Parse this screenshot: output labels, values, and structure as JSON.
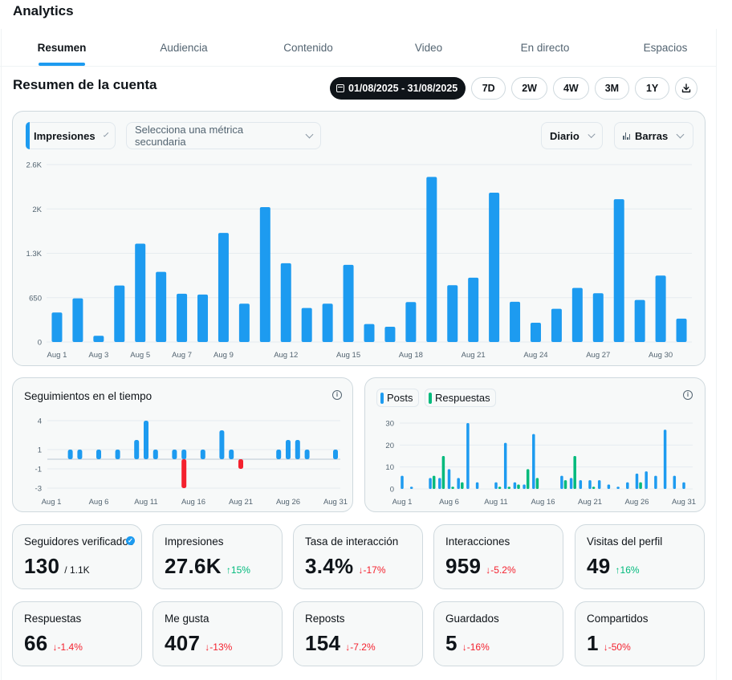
{
  "app": {
    "title": "Analytics"
  },
  "tabs": [
    {
      "label": "Resumen",
      "active": true
    },
    {
      "label": "Audiencia",
      "active": false
    },
    {
      "label": "Contenido",
      "active": false
    },
    {
      "label": "Video",
      "active": false
    },
    {
      "label": "En directo",
      "active": false
    },
    {
      "label": "Espacios",
      "active": false
    }
  ],
  "section_title": "Resumen de la cuenta",
  "range": {
    "date_label": "01/08/2025 - 31/08/2025",
    "presets": [
      "7D",
      "2W",
      "4W",
      "3M",
      "1Y"
    ],
    "download_icon": "download-icon"
  },
  "main_chart": {
    "primary_metric": "Impresiones",
    "secondary_metric_placeholder": "Selecciona una métrica secundaria",
    "granularity": "Diario",
    "chart_type": "Barras"
  },
  "followers_card": {
    "title": "Seguimientos en el tiempo"
  },
  "posts_card": {
    "legend": [
      "Posts",
      "Respuestas"
    ]
  },
  "colors": {
    "accent": "#1d9bf0",
    "green": "#00ba7c",
    "red": "#f4212e"
  },
  "stats": [
    {
      "label": "Seguidores verificados",
      "value": "130",
      "total": "/ 1.1K",
      "verified": true
    },
    {
      "label": "Impresiones",
      "value": "27.6K",
      "delta": "15%",
      "dir": "up"
    },
    {
      "label": "Tasa de interacción",
      "value": "3.4%",
      "delta": "-17%",
      "dir": "down"
    },
    {
      "label": "Interacciones",
      "value": "959",
      "delta": "-5.2%",
      "dir": "down"
    },
    {
      "label": "Visitas del perfil",
      "value": "49",
      "delta": "16%",
      "dir": "up"
    },
    {
      "label": "Respuestas",
      "value": "66",
      "delta": "-1.4%",
      "dir": "down"
    },
    {
      "label": "Me gusta",
      "value": "407",
      "delta": "-13%",
      "dir": "down"
    },
    {
      "label": "Reposts",
      "value": "154",
      "delta": "-7.2%",
      "dir": "down"
    },
    {
      "label": "Guardados",
      "value": "5",
      "delta": "-16%",
      "dir": "down"
    },
    {
      "label": "Compartidos",
      "value": "1",
      "delta": "-50%",
      "dir": "down"
    }
  ],
  "chart_data": [
    {
      "id": "impressions",
      "type": "bar",
      "title": "Impresiones",
      "x": [
        "Aug 1",
        "Aug 2",
        "Aug 3",
        "Aug 4",
        "Aug 5",
        "Aug 6",
        "Aug 7",
        "Aug 8",
        "Aug 9",
        "Aug 10",
        "Aug 11",
        "Aug 12",
        "Aug 13",
        "Aug 14",
        "Aug 15",
        "Aug 16",
        "Aug 17",
        "Aug 18",
        "Aug 19",
        "Aug 20",
        "Aug 21",
        "Aug 22",
        "Aug 23",
        "Aug 24",
        "Aug 25",
        "Aug 26",
        "Aug 27",
        "Aug 28",
        "Aug 29",
        "Aug 30",
        "Aug 31"
      ],
      "values": [
        432,
        640,
        91,
        828,
        1441,
        1028,
        707,
        695,
        1599,
        562,
        1976,
        1154,
        498,
        562,
        1131,
        263,
        224,
        585,
        2419,
        833,
        942,
        2188,
        589,
        283,
        487,
        793,
        715,
        2093,
        616,
        974,
        342
      ],
      "xticks": [
        "Aug 1",
        "Aug 3",
        "Aug 5",
        "Aug 7",
        "Aug 9",
        "Aug 12",
        "Aug 15",
        "Aug 18",
        "Aug 21",
        "Aug 24",
        "Aug 27",
        "Aug 30"
      ],
      "yticks": [
        "0",
        "650",
        "1.3K",
        "2K",
        "2.6K"
      ],
      "ylim": [
        0,
        2600
      ],
      "grid": true
    },
    {
      "id": "follows",
      "type": "bar",
      "title": "Seguimientos en el tiempo",
      "x_days": [
        3,
        4,
        6,
        8,
        10,
        11,
        12,
        14,
        15,
        17,
        19,
        20,
        25,
        26,
        27,
        28,
        31
      ],
      "gained": [
        1,
        1,
        1,
        1,
        2,
        4,
        1,
        1,
        1,
        1,
        3,
        1,
        1,
        2,
        2,
        1,
        1
      ],
      "lost": [
        {
          "day": 15,
          "value": -3
        },
        {
          "day": 21,
          "value": -1
        }
      ],
      "xticks": [
        "Aug 1",
        "Aug 6",
        "Aug 11",
        "Aug 16",
        "Aug 21",
        "Aug 26",
        "Aug 31"
      ],
      "yticks": [
        "4",
        "1",
        "-1",
        "-3"
      ],
      "ylim": [
        -3,
        4
      ],
      "grid": true
    },
    {
      "id": "posts_replies",
      "type": "bar",
      "series": [
        {
          "name": "Posts",
          "days": [
            1,
            2,
            4,
            5,
            6,
            7,
            8,
            9,
            11,
            12,
            13,
            14,
            15,
            18,
            19,
            20,
            21,
            22,
            23,
            24,
            25,
            26,
            27,
            28,
            29,
            30,
            31
          ],
          "values": [
            6,
            1,
            5,
            5,
            9,
            5,
            30,
            3,
            3,
            21,
            3,
            2,
            25,
            6,
            5,
            4,
            4,
            4,
            2,
            1,
            3,
            7,
            8,
            6,
            27,
            6,
            3
          ]
        },
        {
          "name": "Respuestas",
          "days": [
            4,
            5,
            6,
            7,
            11,
            12,
            13,
            14,
            15,
            18,
            19,
            21,
            26
          ],
          "values": [
            6,
            15,
            1,
            3,
            1,
            1,
            2,
            9,
            5,
            4,
            15,
            1,
            3
          ]
        }
      ],
      "xticks": [
        "Aug 1",
        "Aug 6",
        "Aug 11",
        "Aug 16",
        "Aug 21",
        "Aug 26",
        "Aug 31"
      ],
      "yticks": [
        "0",
        "10",
        "20",
        "30"
      ],
      "ylim": [
        0,
        30
      ],
      "grid": true,
      "legend": "top-left"
    }
  ]
}
